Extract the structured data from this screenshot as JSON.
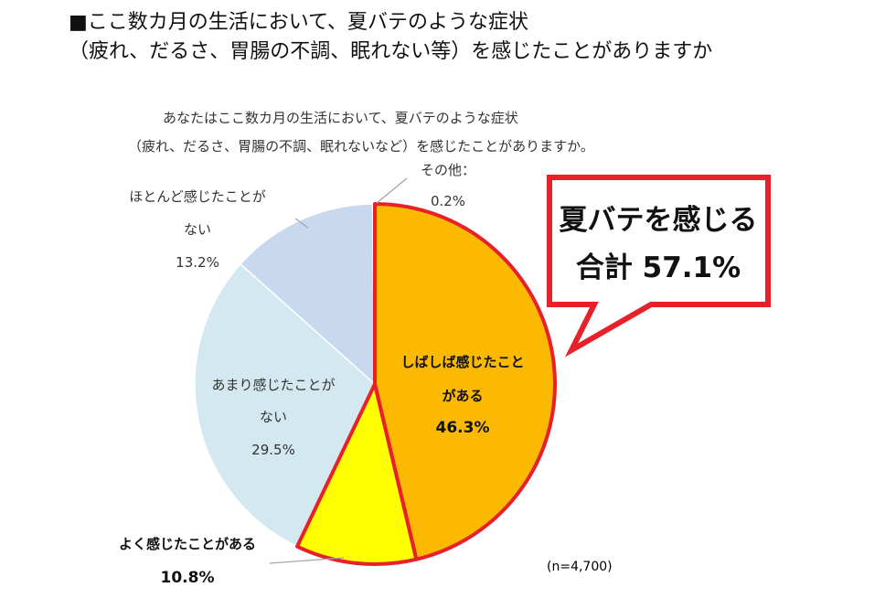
{
  "heading": {
    "line1": "■ここ数カ月の生活において、夏バテのような症状",
    "line2": "（疲れ、だるさ、胃腸の不調、眠れない等）を感じたことがありますか"
  },
  "question": {
    "line1": "あなたはここ数カ月の生活において、夏バテのような症状",
    "line2": "（疲れ、だるさ、胃腸の不調、眠れないなど）を感じたことがありますか。"
  },
  "sample_note": "(n=4,700)",
  "callout": {
    "line1": "夏バテを感じる",
    "line2": "合計 57.1%",
    "border_color": "#e8202a"
  },
  "chart_data": {
    "type": "pie",
    "start": "12 o'clock, clockwise",
    "slices": [
      {
        "label_lines": [
          "しばしば感じたこと",
          "がある"
        ],
        "value": 46.3,
        "value_text": "46.3%",
        "color": "#fbb901",
        "highlight": true
      },
      {
        "label_lines": [
          "よく感じたことがある"
        ],
        "value": 10.8,
        "value_text": "10.8%",
        "color": "#ffff00",
        "highlight": true
      },
      {
        "label_lines": [
          "あまり感じたことが",
          "ない"
        ],
        "value": 29.5,
        "value_text": "29.5%",
        "color": "#d4e8f0",
        "highlight": false
      },
      {
        "label_lines": [
          "ほとんど感じたことが",
          "ない"
        ],
        "value": 13.2,
        "value_text": "13.2%",
        "color": "#c8d8ef",
        "highlight": false
      },
      {
        "label_lines": [
          "その他："
        ],
        "value": 0.2,
        "value_text": "0.2%",
        "color": "#c8d8ef",
        "highlight": false
      }
    ],
    "highlight_border_color": "#e8202a"
  }
}
